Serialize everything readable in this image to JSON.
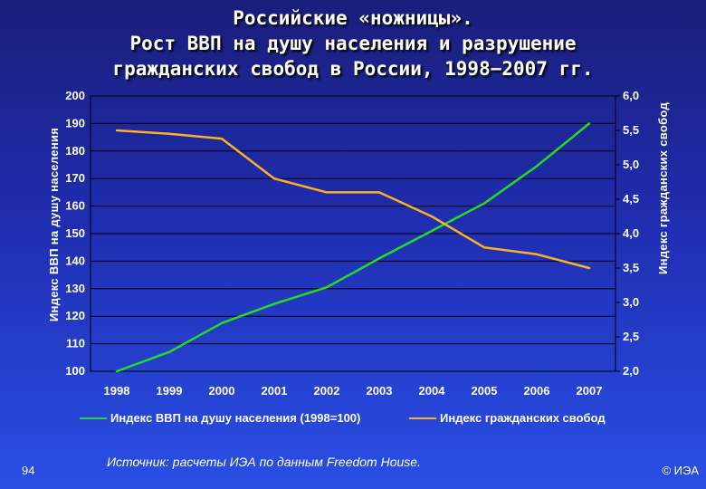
{
  "title": {
    "line1": "Российские «ножницы».",
    "line2": "Рост ВВП на душу населения и разрушение",
    "line3": "гражданских свобод в России, 1998−2007 гг."
  },
  "footer": {
    "source": "Источник: расчеты ИЭА по данным Freedom House.",
    "page_number": "94",
    "copyright": "© ИЭА"
  },
  "colors": {
    "gdp_line": "#22dd22",
    "freedom_line": "#ffb020"
  },
  "chart_data": {
    "type": "line",
    "title": "Российские «ножницы». Рост ВВП на душу населения и разрушение гражданских свобод в России, 1998−2007 гг.",
    "categories": [
      "1998",
      "1999",
      "2000",
      "2001",
      "2002",
      "2003",
      "2004",
      "2005",
      "2006",
      "2007"
    ],
    "ylabel_left": "Индекс ВВП на душу населения",
    "ylabel_right": "Индекс гражданских свобод",
    "ylim_left": [
      100,
      200
    ],
    "ylim_right": [
      2.0,
      6.0
    ],
    "yticks_left": [
      "100",
      "110",
      "120",
      "130",
      "140",
      "150",
      "160",
      "170",
      "180",
      "190",
      "200"
    ],
    "yticks_right": [
      "2,0",
      "2,5",
      "3,0",
      "3,5",
      "4,0",
      "4,5",
      "5,0",
      "5,5",
      "6,0"
    ],
    "grid": true,
    "legend_position": "bottom",
    "series": [
      {
        "name": "Индекс ВВП на душу населения (1998=100)",
        "axis": "left",
        "values": [
          100,
          107,
          117.5,
          124.5,
          130.5,
          141,
          151,
          161,
          174.5,
          190
        ]
      },
      {
        "name": "Индекс гражданских свобод",
        "axis": "right",
        "values": [
          5.5,
          5.45,
          5.38,
          4.8,
          4.6,
          4.6,
          4.25,
          3.8,
          3.7,
          3.5
        ]
      }
    ]
  }
}
